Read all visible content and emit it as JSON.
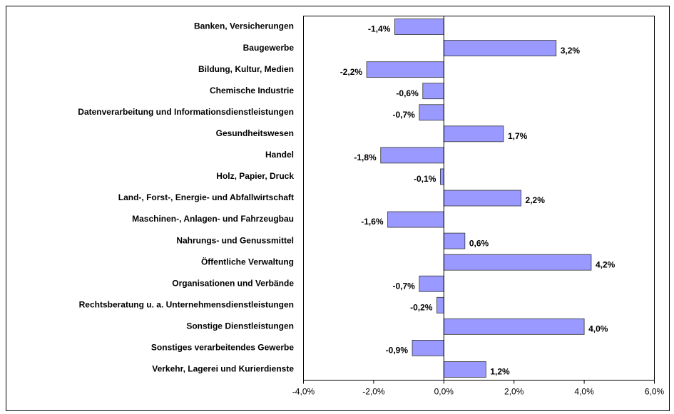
{
  "chart_data": {
    "type": "hbar",
    "categories": [
      "Banken, Versicherungen",
      "Baugewerbe",
      "Bildung, Kultur, Medien",
      "Chemische Industrie",
      "Datenverarbeitung und Informationsdienstleistungen",
      "Gesundheitswesen",
      "Handel",
      "Holz, Papier, Druck",
      "Land-, Forst-,  Energie- und Abfallwirtschaft",
      "Maschinen-, Anlagen- und Fahrzeugbau",
      "Nahrungs- und Genussmittel",
      "Öffentliche Verwaltung",
      "Organisationen und Verbände",
      "Rechtsberatung u. a. Unternehmensdienstleistungen",
      "Sonstige Dienstleistungen",
      "Sonstiges verarbeitendes Gewerbe",
      "Verkehr, Lagerei und Kurierdienste"
    ],
    "values": [
      -1.4,
      3.2,
      -2.2,
      -0.6,
      -0.7,
      1.7,
      -1.8,
      -0.1,
      2.2,
      -1.6,
      0.6,
      4.2,
      -0.7,
      -0.2,
      4.0,
      -0.9,
      1.2
    ],
    "value_labels": [
      "-1,4%",
      "3,2%",
      "-2,2%",
      "-0,6%",
      "-0,7%",
      "1,7%",
      "-1,8%",
      "-0,1%",
      "2,2%",
      "-1,6%",
      "0,6%",
      "4,2%",
      "-0,7%",
      "-0,2%",
      "4,0%",
      "-0,9%",
      "1,2%"
    ],
    "color": "#9999ff",
    "xlim": [
      -4,
      6
    ],
    "xticks": [
      {
        "value": -4,
        "label": "-4,0%"
      },
      {
        "value": -2,
        "label": "-2,0%"
      },
      {
        "value": 0,
        "label": "0,0%"
      },
      {
        "value": 2,
        "label": "2,0%"
      },
      {
        "value": 4,
        "label": "4,0%"
      },
      {
        "value": 6,
        "label": "6,0%"
      }
    ]
  }
}
